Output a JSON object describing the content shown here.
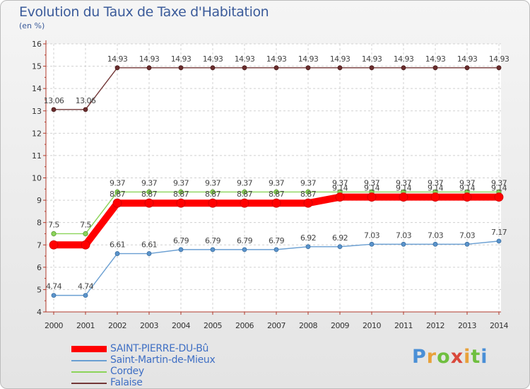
{
  "title": "Evolution du Taux de Taxe d'Habitation",
  "unit": "(en %)",
  "logo": "Proxiti",
  "colors": {
    "SAINT-PIERRE-DU-Bû": "#ff0000",
    "Saint-Martin-de-Mieux": "#6a9fd2",
    "Cordey": "#8cd45a",
    "Falaise": "#733838"
  },
  "chart_data": {
    "type": "line",
    "title": "Evolution du Taux de Taxe d'Habitation",
    "ylabel": "(en %)",
    "xlabel": "",
    "ylim": [
      4,
      16
    ],
    "yticks": [
      "4",
      "5",
      "6",
      "7",
      "8",
      "9",
      "10",
      "11",
      "12",
      "13",
      "14",
      "15",
      "16"
    ],
    "categories": [
      "2000",
      "2001",
      "2002",
      "2003",
      "2004",
      "2005",
      "2006",
      "2007",
      "2008",
      "2009",
      "2010",
      "2011",
      "2012",
      "2013",
      "2014"
    ],
    "series": [
      {
        "name": "Falaise",
        "values": [
          13.06,
          13.06,
          14.93,
          14.93,
          14.93,
          14.93,
          14.93,
          14.93,
          14.93,
          14.93,
          14.93,
          14.93,
          14.93,
          14.93,
          14.93
        ],
        "labels": [
          "13.06",
          "13.06",
          "14.93",
          "14.93",
          "14.93",
          "14.93",
          "14.93",
          "14.93",
          "14.93",
          "14.93",
          "14.93",
          "14.93",
          "14.93",
          "14.93",
          "14.93"
        ]
      },
      {
        "name": "Cordey",
        "values": [
          7.5,
          7.5,
          9.37,
          9.37,
          9.37,
          9.37,
          9.37,
          9.37,
          9.37,
          9.37,
          9.37,
          9.37,
          9.37,
          9.37,
          9.37
        ],
        "labels": [
          "7.5",
          "7.5",
          "9.37",
          "9.37",
          "9.37",
          "9.37",
          "9.37",
          "9.37",
          "9.37",
          "9.37",
          "9.37",
          "9.37",
          "9.37",
          "9.37",
          "9.37"
        ]
      },
      {
        "name": "SAINT-PIERRE-DU-Bû",
        "values": [
          7.0,
          7.0,
          8.87,
          8.87,
          8.87,
          8.87,
          8.87,
          8.87,
          8.87,
          9.14,
          9.14,
          9.14,
          9.14,
          9.14,
          9.14
        ],
        "labels": [
          "",
          "",
          "8.87",
          "8.87",
          "8.87",
          "8.87",
          "8.87",
          "8.87",
          "8.87",
          "9.14",
          "9.14",
          "9.14",
          "9.14",
          "9.14",
          "9.14"
        ]
      },
      {
        "name": "Saint-Martin-de-Mieux",
        "values": [
          4.74,
          4.74,
          6.61,
          6.61,
          6.79,
          6.79,
          6.79,
          6.79,
          6.92,
          6.92,
          7.03,
          7.03,
          7.03,
          7.03,
          7.17
        ],
        "labels": [
          "4.74",
          "4.74",
          "6.61",
          "6.61",
          "6.79",
          "6.79",
          "6.79",
          "6.79",
          "6.92",
          "6.92",
          "7.03",
          "7.03",
          "7.03",
          "7.03",
          "7.17"
        ]
      }
    ],
    "legend": [
      "SAINT-PIERRE-DU-Bû",
      "Saint-Martin-de-Mieux",
      "Cordey",
      "Falaise"
    ]
  }
}
